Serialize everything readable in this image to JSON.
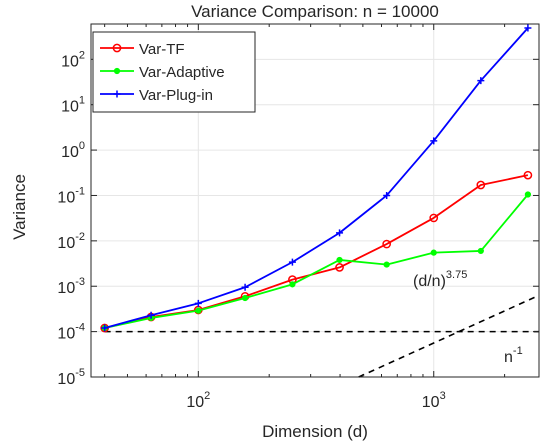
{
  "chart_data": {
    "type": "line",
    "title": "Variance Comparison: n = 10000",
    "xlabel": "Dimension (d)",
    "ylabel": "Variance",
    "xscale": "log",
    "yscale": "log",
    "xlim": [
      35,
      2800
    ],
    "ylim": [
      1e-05,
      600
    ],
    "grid": true,
    "legend_position": "top-left",
    "x_ticks": [
      {
        "value": 100,
        "base": "10",
        "exp": "2"
      },
      {
        "value": 1000,
        "base": "10",
        "exp": "3"
      }
    ],
    "y_ticks": [
      {
        "value": 1e-05,
        "base": "10",
        "exp": "-5"
      },
      {
        "value": 0.0001,
        "base": "10",
        "exp": "-4"
      },
      {
        "value": 0.001,
        "base": "10",
        "exp": "-3"
      },
      {
        "value": 0.01,
        "base": "10",
        "exp": "-2"
      },
      {
        "value": 0.1,
        "base": "10",
        "exp": "-1"
      },
      {
        "value": 1.0,
        "base": "10",
        "exp": "0"
      },
      {
        "value": 10.0,
        "base": "10",
        "exp": "1"
      },
      {
        "value": 100.0,
        "base": "10",
        "exp": "2"
      }
    ],
    "x": [
      40,
      63,
      100,
      158,
      251,
      398,
      631,
      1000,
      1585,
      2512
    ],
    "series": [
      {
        "name": "Var-TF",
        "color": "#ff0000",
        "marker": "circle",
        "values": [
          0.00012,
          0.00021,
          0.0003,
          0.0006,
          0.0014,
          0.0026,
          0.0085,
          0.032,
          0.17,
          0.28
        ]
      },
      {
        "name": "Var-Adaptive",
        "color": "#00ff00",
        "marker": "dot",
        "values": [
          0.00012,
          0.0002,
          0.00029,
          0.00055,
          0.0011,
          0.0038,
          0.003,
          0.0055,
          0.006,
          0.105
        ]
      },
      {
        "name": "Var-Plug-in",
        "color": "#0000ff",
        "marker": "plus",
        "values": [
          0.00012,
          0.00023,
          0.00042,
          0.00095,
          0.0034,
          0.015,
          0.1,
          1.6,
          34,
          490
        ]
      }
    ],
    "reference_lines": [
      {
        "label_base": "n",
        "label_exp": "-1",
        "x": [
          40,
          2800
        ],
        "values": [
          0.0001,
          0.0001
        ]
      },
      {
        "label_base": "(d/n)",
        "label_exp": "3.75",
        "x": [
          480,
          2800
        ],
        "values": [
          1e-05,
          0.00063
        ]
      }
    ]
  }
}
